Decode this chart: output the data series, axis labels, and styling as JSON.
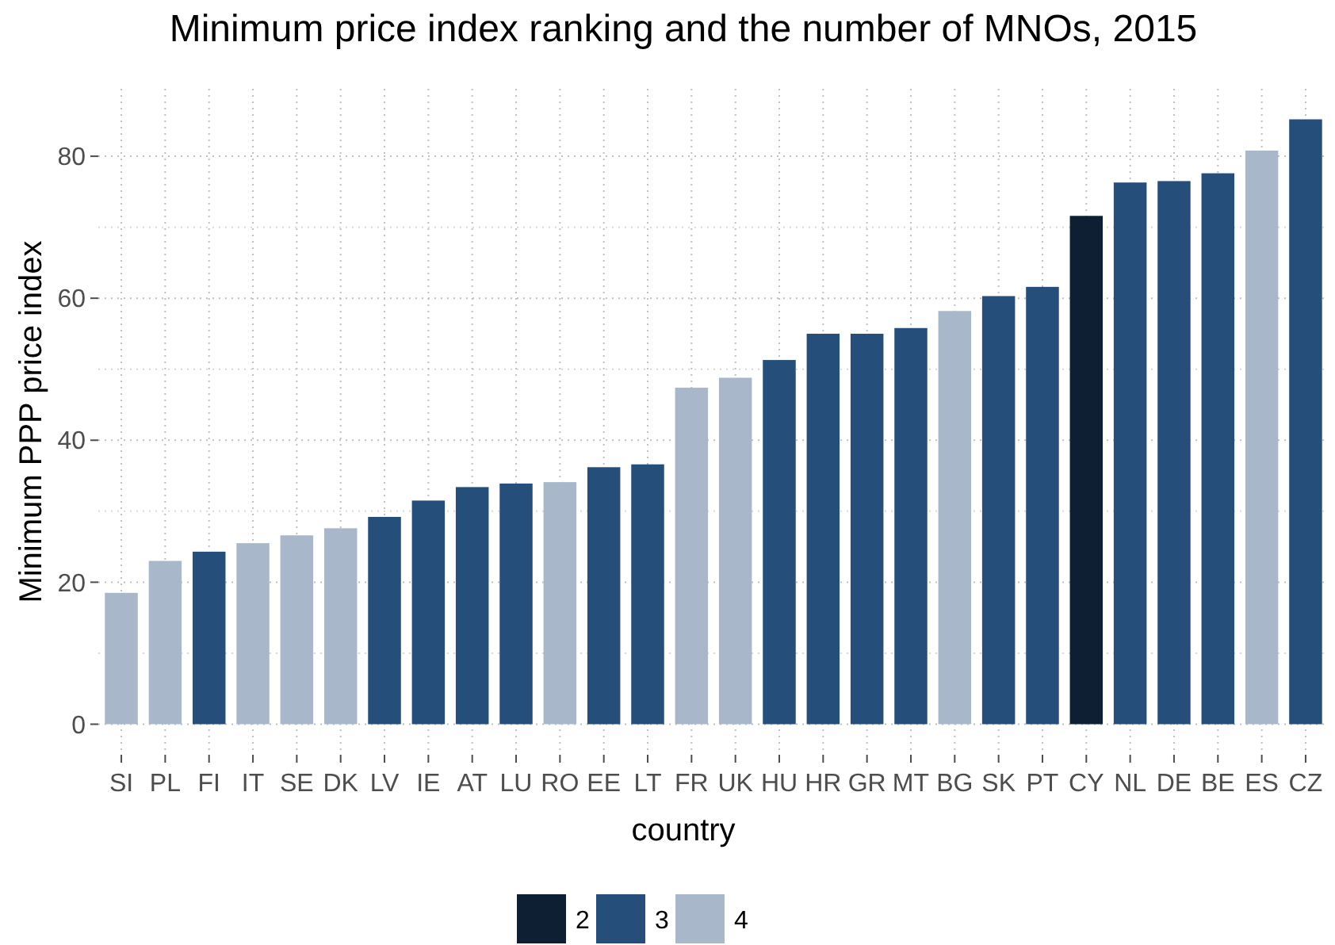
{
  "chart_data": {
    "type": "bar",
    "title": "Minimum price index ranking and the number of MNOs, 2015",
    "xlabel": "country",
    "ylabel": "Minimum PPP price index",
    "categories": [
      "SI",
      "PL",
      "FI",
      "IT",
      "SE",
      "DK",
      "LV",
      "IE",
      "AT",
      "LU",
      "RO",
      "EE",
      "LT",
      "FR",
      "UK",
      "HU",
      "HR",
      "GR",
      "MT",
      "BG",
      "SK",
      "PT",
      "CY",
      "NL",
      "DE",
      "BE",
      "ES",
      "CZ"
    ],
    "series": [
      {
        "name": "2",
        "color": "#0f1f33",
        "values": [
          null,
          null,
          null,
          null,
          null,
          null,
          null,
          null,
          null,
          null,
          null,
          null,
          null,
          null,
          null,
          null,
          null,
          null,
          null,
          null,
          null,
          null,
          71.6,
          null,
          null,
          null,
          null,
          null
        ]
      },
      {
        "name": "3",
        "color": "#254e7b",
        "values": [
          null,
          null,
          24.3,
          null,
          null,
          null,
          29.2,
          31.5,
          33.4,
          33.9,
          null,
          36.2,
          36.6,
          null,
          null,
          51.3,
          55,
          55,
          55.8,
          null,
          60.3,
          61.6,
          null,
          76.3,
          76.5,
          77.6,
          null,
          85.2
        ]
      },
      {
        "name": "4",
        "color": "#a8b8ca",
        "values": [
          18.5,
          23,
          null,
          25.5,
          26.6,
          27.6,
          null,
          null,
          null,
          null,
          34.1,
          null,
          null,
          47.4,
          48.8,
          null,
          null,
          null,
          null,
          58.2,
          null,
          null,
          null,
          null,
          null,
          null,
          80.8,
          null
        ]
      }
    ],
    "ylim": [
      -4.3,
      89.5
    ],
    "yticks": [
      0,
      20,
      40,
      60,
      80
    ],
    "grid": true,
    "legend": "bottom"
  }
}
